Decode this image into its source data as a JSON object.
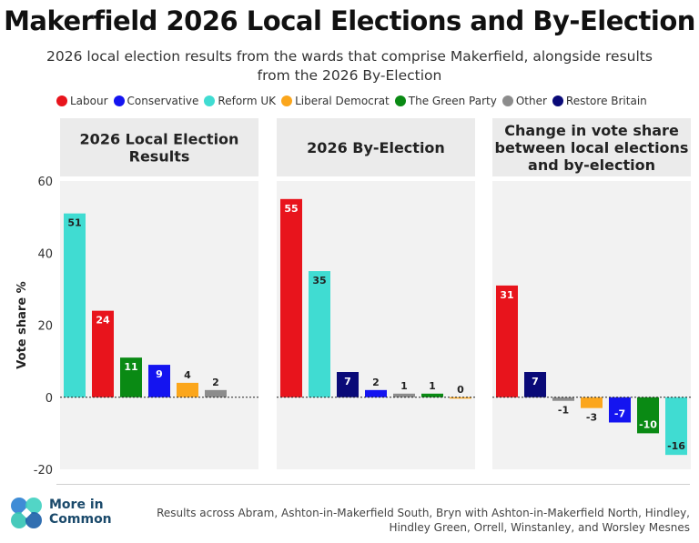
{
  "title": "Makerfield 2026 Local Elections and By-Election",
  "subtitle": "2026 local election results from the wards that comprise Makerfield, alongside results from the 2026 By-Election",
  "legend": [
    {
      "label": "Labour",
      "color": "#e8141c"
    },
    {
      "label": "Conservative",
      "color": "#1414f0"
    },
    {
      "label": "Reform UK",
      "color": "#40dcd2"
    },
    {
      "label": "Liberal Democrat",
      "color": "#fba61c"
    },
    {
      "label": "The Green Party",
      "color": "#0a8a14"
    },
    {
      "label": "Other",
      "color": "#8c8c8c"
    },
    {
      "label": "Restore Britain",
      "color": "#0a0a78"
    }
  ],
  "footer": {
    "logo_line1": "More in",
    "logo_line2": "Common",
    "note": "Results across Abram, Ashton-in-Makerfield South, Bryn with Ashton-in-Makerfield North, Hindley, Hindley Green, Orrell, Winstanley, and Worsley Mesnes"
  },
  "chart_data": {
    "type": "bar",
    "ylabel": "Vote share %",
    "ylim": [
      -20,
      60
    ],
    "yticks": [
      -20,
      0,
      20,
      40,
      60
    ],
    "grid": false,
    "legend_placement": "top",
    "panels": [
      {
        "title_lines": [
          "2026 Local Election",
          "Results"
        ],
        "bars": [
          {
            "party": "Reform UK",
            "value": 51
          },
          {
            "party": "Labour",
            "value": 24
          },
          {
            "party": "The Green Party",
            "value": 11
          },
          {
            "party": "Conservative",
            "value": 9
          },
          {
            "party": "Liberal Democrat",
            "value": 4
          },
          {
            "party": "Other",
            "value": 2
          }
        ]
      },
      {
        "title_lines": [
          "2026 By-Election"
        ],
        "bars": [
          {
            "party": "Labour",
            "value": 55
          },
          {
            "party": "Reform UK",
            "value": 35
          },
          {
            "party": "Restore Britain",
            "value": 7
          },
          {
            "party": "Conservative",
            "value": 2
          },
          {
            "party": "Other",
            "value": 1
          },
          {
            "party": "The Green Party",
            "value": 1
          },
          {
            "party": "Liberal Democrat",
            "value": 0
          }
        ]
      },
      {
        "title_lines": [
          "Change in vote share",
          "between local elections",
          "and by-election"
        ],
        "bars": [
          {
            "party": "Labour",
            "value": 31
          },
          {
            "party": "Restore Britain",
            "value": 7
          },
          {
            "party": "Other",
            "value": -1
          },
          {
            "party": "Liberal Democrat",
            "value": -3
          },
          {
            "party": "Conservative",
            "value": -7
          },
          {
            "party": "The Green Party",
            "value": -10
          },
          {
            "party": "Reform UK",
            "value": -16
          }
        ]
      }
    ]
  }
}
